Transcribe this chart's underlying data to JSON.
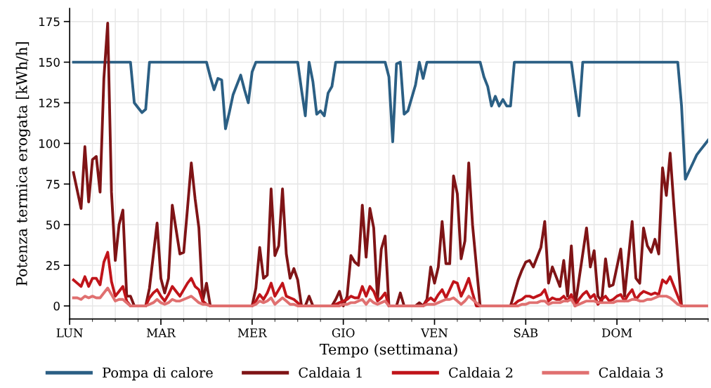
{
  "chart_data": {
    "type": "line",
    "xlabel": "Tempo (settimana)",
    "ylabel": "Potenza termica erogata [kWh/h]",
    "categories": [
      "LUN",
      null,
      null,
      null,
      null,
      null,
      null,
      null,
      null,
      null,
      null,
      null,
      null,
      null,
      null,
      null,
      null,
      null,
      null,
      null,
      null,
      null,
      null,
      null,
      "MAR",
      null,
      null,
      null,
      null,
      null,
      null,
      null,
      null,
      null,
      null,
      null,
      null,
      null,
      null,
      null,
      null,
      null,
      null,
      null,
      null,
      null,
      null,
      null,
      "MER",
      null,
      null,
      null,
      null,
      null,
      null,
      null,
      null,
      null,
      null,
      null,
      null,
      null,
      null,
      null,
      null,
      null,
      null,
      null,
      null,
      null,
      null,
      null,
      "GIO",
      null,
      null,
      null,
      null,
      null,
      null,
      null,
      null,
      null,
      null,
      null,
      null,
      null,
      null,
      null,
      null,
      null,
      null,
      null,
      null,
      null,
      null,
      null,
      "VEN",
      null,
      null,
      null,
      null,
      null,
      null,
      null,
      null,
      null,
      null,
      null,
      null,
      null,
      null,
      null,
      null,
      null,
      null,
      null,
      null,
      null,
      null,
      null,
      "SAB",
      null,
      null,
      null,
      null,
      null,
      null,
      null,
      null,
      null,
      null,
      null,
      null,
      null,
      null,
      null,
      null,
      null,
      null,
      null,
      null,
      null,
      null,
      null,
      "DOM",
      null,
      null,
      null,
      null,
      null,
      null,
      null,
      null,
      null,
      null,
      null,
      null,
      null,
      null,
      null,
      null,
      null,
      null,
      null,
      null,
      null,
      null,
      null,
      null
    ],
    "ylim": [
      -8,
      183
    ],
    "yticks": [
      0,
      25,
      50,
      75,
      100,
      125,
      150,
      175
    ],
    "grid": true,
    "legend": "bottom",
    "marker": "none",
    "line_style": "solid",
    "series": [
      {
        "name": "Pompa di calore",
        "color": "#2b5f84",
        "values": [
          null,
          150,
          150,
          150,
          150,
          150,
          150,
          150,
          150,
          150,
          150,
          150,
          150,
          150,
          150,
          150,
          150,
          125,
          122,
          119,
          121,
          150,
          150,
          150,
          150,
          150,
          150,
          150,
          150,
          150,
          150,
          150,
          150,
          150,
          150,
          150,
          150,
          141,
          133,
          140,
          139,
          109,
          119,
          130,
          136,
          142,
          133,
          125,
          144,
          150,
          150,
          150,
          150,
          150,
          150,
          150,
          150,
          150,
          150,
          150,
          150,
          133,
          117,
          150,
          138,
          118,
          120,
          117,
          131,
          135,
          150,
          150,
          150,
          150,
          150,
          150,
          150,
          150,
          150,
          150,
          150,
          150,
          150,
          150,
          141,
          101,
          149,
          150,
          118,
          120,
          128,
          136,
          150,
          140,
          150,
          150,
          150,
          150,
          150,
          150,
          150,
          150,
          150,
          150,
          150,
          150,
          150,
          150,
          150,
          141,
          135,
          123,
          129,
          123,
          127,
          123,
          123,
          150,
          150,
          150,
          150,
          150,
          150,
          150,
          150,
          150,
          150,
          150,
          150,
          150,
          150,
          150,
          150,
          133,
          117,
          150,
          150,
          150,
          150,
          150,
          150,
          150,
          150,
          150,
          150,
          150,
          150,
          150,
          150,
          150,
          150,
          150,
          150,
          150,
          150,
          150,
          150,
          150,
          150,
          150,
          150,
          123,
          78,
          83,
          88,
          93,
          96,
          99,
          102
        ]
      },
      {
        "name": "Caldaia 1",
        "color": "#7f1416",
        "values": [
          null,
          82,
          71,
          60,
          98,
          64,
          90,
          92,
          70,
          140,
          174,
          70,
          28,
          50,
          59,
          6,
          6,
          0,
          0,
          0,
          0,
          11,
          31,
          51,
          17,
          8,
          17,
          62,
          47,
          32,
          33,
          60,
          88,
          66,
          48,
          3,
          14,
          0,
          0,
          0,
          0,
          0,
          0,
          0,
          0,
          0,
          0,
          0,
          0,
          11,
          36,
          17,
          19,
          72,
          31,
          37,
          72,
          32,
          17,
          23,
          16,
          0,
          0,
          6,
          0,
          0,
          0,
          0,
          0,
          0,
          4,
          9,
          0,
          6,
          31,
          27,
          25,
          62,
          30,
          60,
          48,
          4,
          35,
          43,
          0,
          0,
          0,
          8,
          0,
          0,
          0,
          0,
          2,
          0,
          4,
          24,
          14,
          24,
          52,
          26,
          26,
          80,
          69,
          29,
          40,
          88,
          50,
          25,
          0,
          0,
          0,
          0,
          0,
          0,
          0,
          0,
          0,
          8,
          16,
          22,
          27,
          28,
          24,
          30,
          36,
          52,
          14,
          24,
          18,
          12,
          28,
          6,
          37,
          0,
          16,
          32,
          48,
          24,
          34,
          6,
          3,
          29,
          12,
          13,
          24,
          35,
          6,
          29,
          52,
          17,
          14,
          48,
          37,
          33,
          41,
          32,
          85,
          68,
          94,
          61,
          30,
          0,
          0,
          0,
          null,
          null,
          null,
          null,
          null
        ]
      },
      {
        "name": "Caldaia 2",
        "color": "#c0141a",
        "values": [
          null,
          16,
          14,
          12,
          18,
          12,
          17,
          17,
          13,
          27,
          33,
          15,
          6,
          9,
          12,
          3,
          0,
          0,
          0,
          0,
          0,
          5,
          8,
          10,
          6,
          3,
          7,
          12,
          9,
          6,
          10,
          14,
          17,
          12,
          10,
          3,
          1,
          0,
          0,
          0,
          0,
          0,
          0,
          0,
          0,
          0,
          0,
          0,
          0,
          3,
          7,
          4,
          8,
          14,
          6,
          10,
          14,
          6,
          5,
          4,
          2,
          0,
          0,
          0,
          0,
          0,
          0,
          0,
          0,
          0,
          1,
          2,
          3,
          4,
          6,
          5,
          5,
          12,
          6,
          12,
          9,
          3,
          5,
          8,
          0,
          0,
          0,
          0,
          0,
          0,
          0,
          0,
          0,
          0,
          3,
          5,
          3,
          7,
          10,
          5,
          10,
          15,
          14,
          6,
          11,
          17,
          8,
          0,
          0,
          0,
          0,
          0,
          0,
          0,
          0,
          0,
          0,
          1,
          3,
          4,
          6,
          6,
          5,
          6,
          7,
          10,
          3,
          5,
          4,
          4,
          6,
          3,
          7,
          0,
          4,
          7,
          9,
          5,
          7,
          1,
          4,
          6,
          3,
          4,
          6,
          7,
          3,
          7,
          10,
          4,
          7,
          9,
          8,
          7,
          8,
          7,
          16,
          14,
          18,
          12,
          6,
          0,
          0,
          0,
          null,
          null,
          null,
          null,
          null
        ]
      },
      {
        "name": "Caldaia 3",
        "color": "#e07070",
        "values": [
          null,
          5,
          5,
          4,
          6,
          5,
          6,
          5,
          5,
          8,
          11,
          7,
          3,
          4,
          4,
          2,
          0,
          0,
          0,
          0,
          0,
          1,
          2,
          4,
          2,
          1,
          2,
          4,
          3,
          3,
          4,
          5,
          6,
          4,
          2,
          1,
          1,
          0,
          0,
          0,
          0,
          0,
          0,
          0,
          0,
          0,
          0,
          0,
          0,
          1,
          3,
          2,
          3,
          5,
          1,
          3,
          5,
          3,
          1,
          1,
          0,
          0,
          0,
          0,
          0,
          0,
          0,
          0,
          0,
          0,
          0,
          0,
          1,
          1,
          2,
          2,
          3,
          4,
          1,
          4,
          2,
          1,
          2,
          3,
          0,
          0,
          0,
          0,
          0,
          0,
          0,
          0,
          0,
          0,
          1,
          1,
          1,
          2,
          3,
          4,
          4,
          5,
          3,
          1,
          3,
          6,
          4,
          2,
          0,
          0,
          0,
          0,
          0,
          0,
          0,
          0,
          0,
          0,
          0,
          1,
          1,
          2,
          2,
          2,
          3,
          3,
          1,
          2,
          2,
          2,
          3,
          3,
          4,
          0,
          1,
          2,
          3,
          3,
          3,
          2,
          2,
          2,
          2,
          2,
          3,
          3,
          3,
          3,
          4,
          4,
          3,
          3,
          4,
          4,
          5,
          6,
          6,
          6,
          5,
          3,
          1,
          0,
          0,
          0,
          0,
          0,
          0,
          0,
          0
        ]
      }
    ]
  }
}
